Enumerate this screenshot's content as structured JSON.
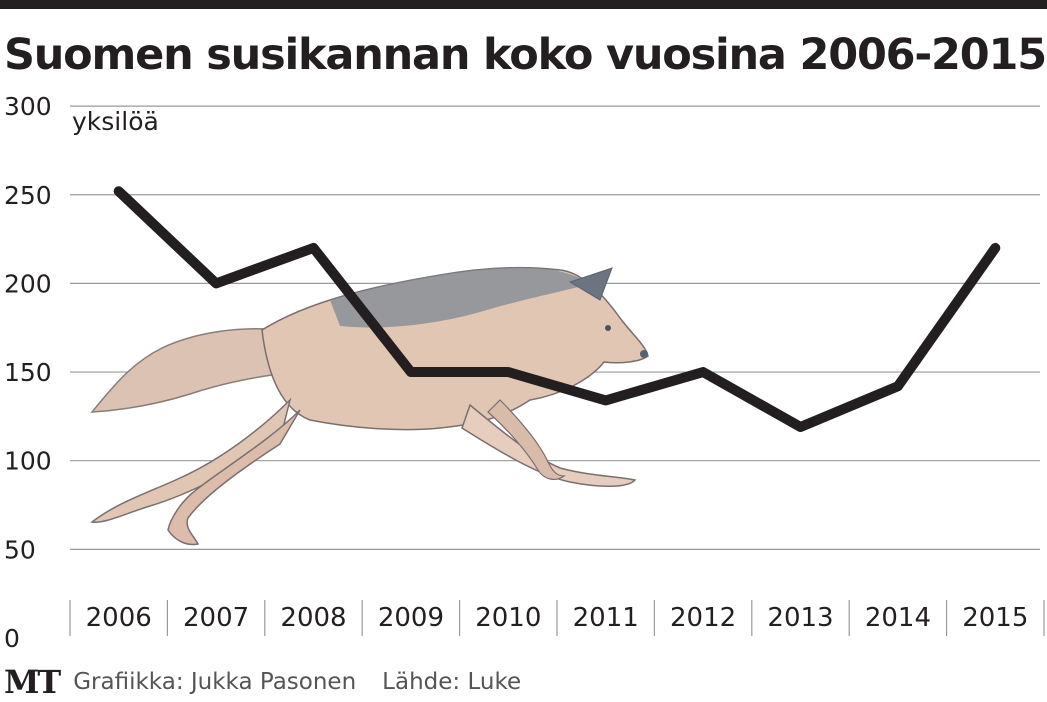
{
  "title": "Suomen susikannan koko vuosina 2006-2015",
  "footer": {
    "logo": "MT",
    "graphics_credit": "Grafiikka: Jukka Pasonen",
    "source": "Lähde: Luke"
  },
  "colors": {
    "line": "#231f20",
    "grid": "#9a9a9a",
    "text": "#231f20",
    "wolf_fur": "#e2c6b4",
    "wolf_dark": "#6b7480"
  },
  "illustration": {
    "icon": "wolf-illustration"
  },
  "chart_data": {
    "type": "line",
    "x": [
      "2006",
      "2007",
      "2008",
      "2009",
      "2010",
      "2011",
      "2012",
      "2013",
      "2014",
      "2015"
    ],
    "series": [
      {
        "values": [
          252,
          200,
          220,
          150,
          150,
          134,
          150,
          119,
          142,
          220
        ]
      }
    ],
    "ylabel": "yksilöä",
    "yticks": [
      0,
      50,
      100,
      150,
      200,
      250,
      300
    ],
    "ylim": [
      0,
      300
    ],
    "grid": true,
    "legend": "none"
  }
}
